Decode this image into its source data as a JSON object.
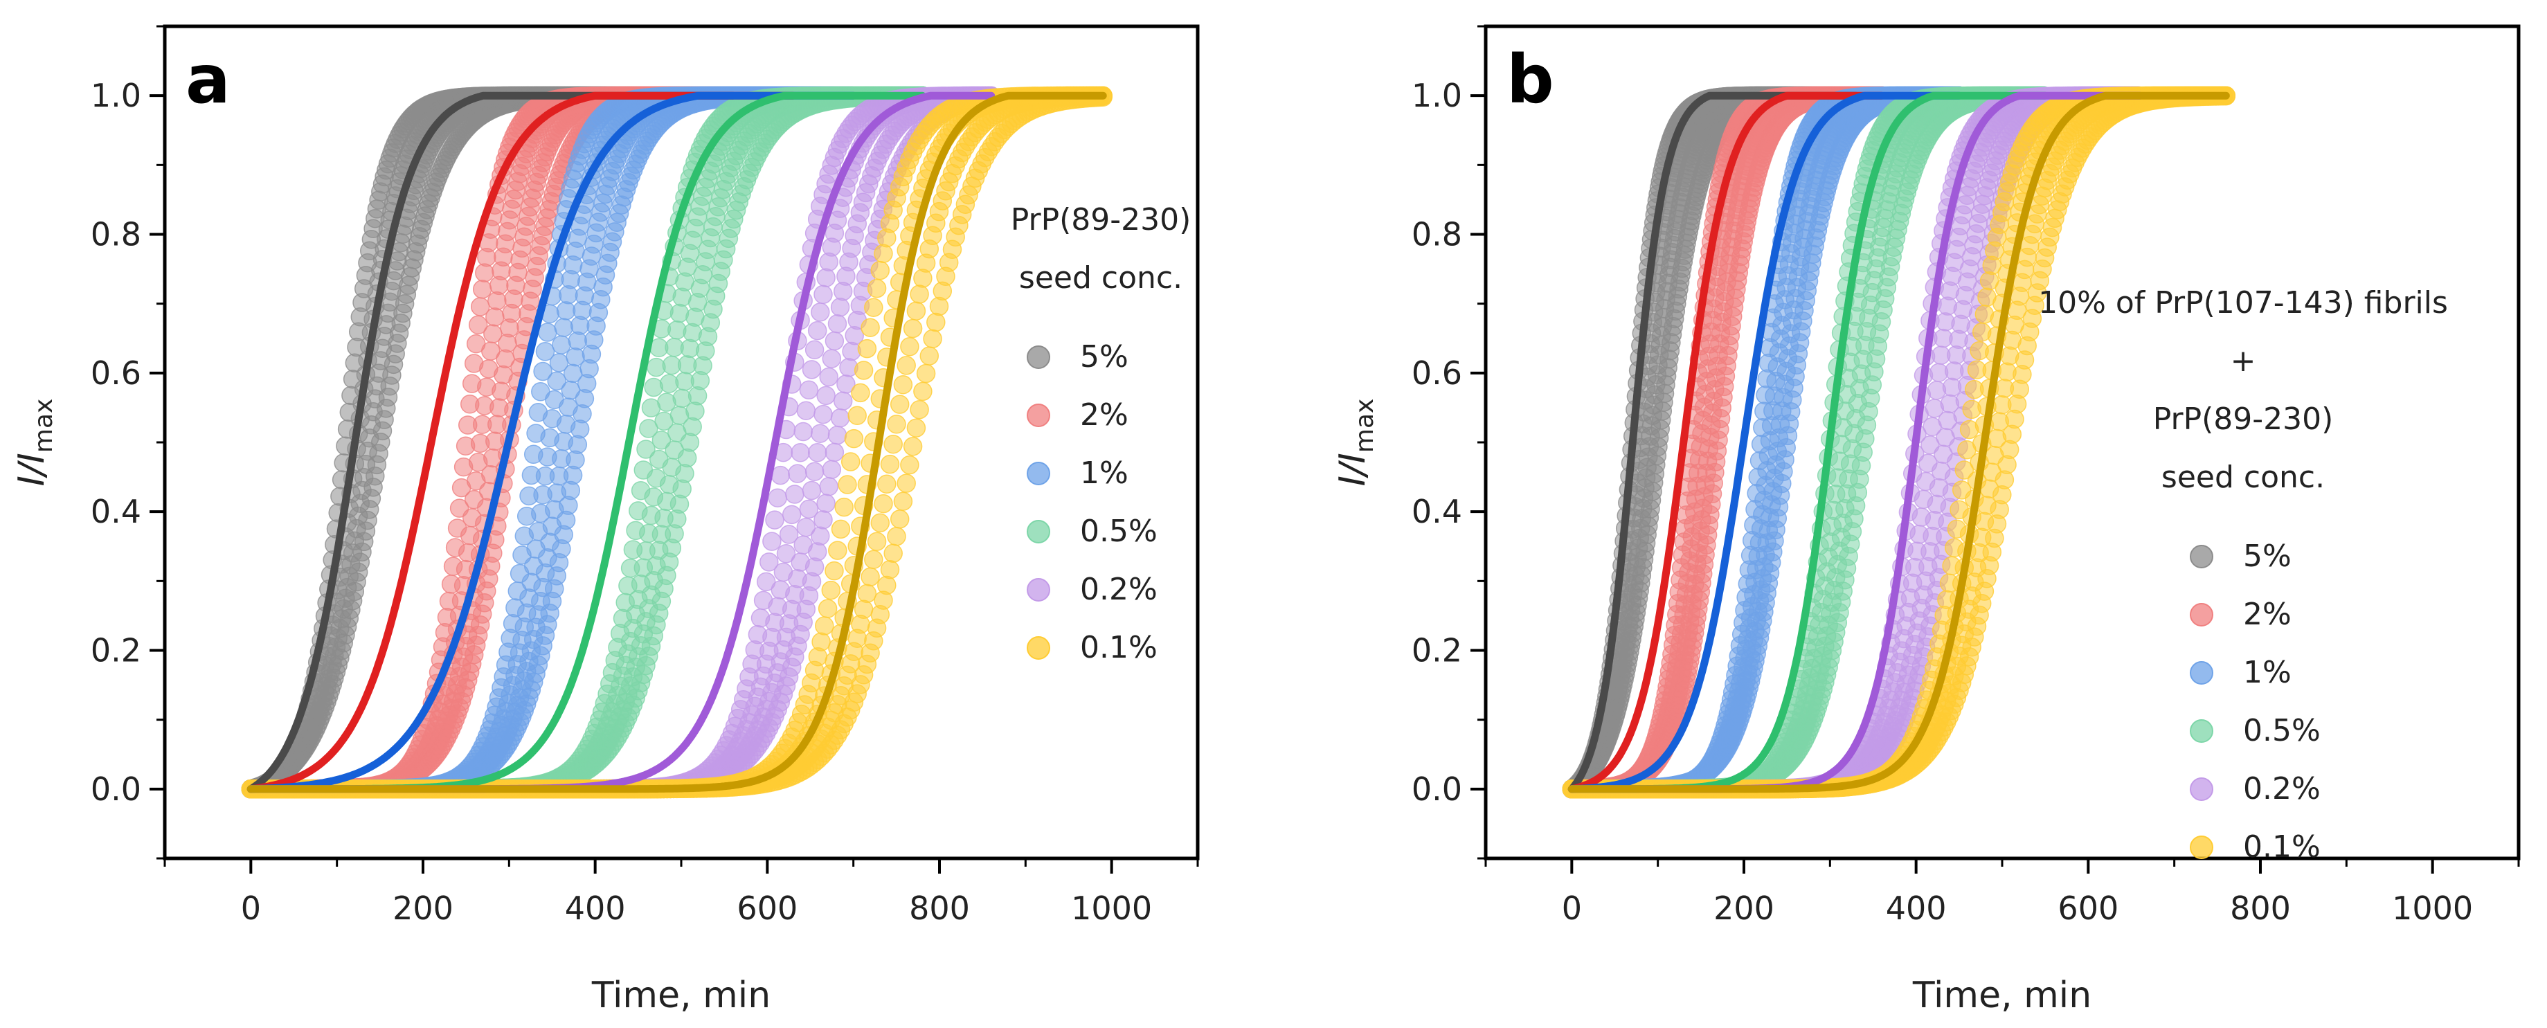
{
  "chart_data": [
    {
      "type": "scatter",
      "panel_label": "a",
      "xlabel": "Time, min",
      "ylabel": "I/I",
      "ylabel_sub": "max",
      "xlim": [
        -100,
        1100
      ],
      "ylim": [
        -0.1,
        1.1
      ],
      "xticks": [
        0,
        200,
        400,
        600,
        800,
        1000
      ],
      "yticks": [
        0.0,
        0.2,
        0.4,
        0.6,
        0.8,
        1.0
      ],
      "xtick_labels": [
        "0",
        "200",
        "400",
        "600",
        "800",
        "1000"
      ],
      "ytick_labels": [
        "0.0",
        "0.2",
        "0.4",
        "0.6",
        "0.8",
        "1.0"
      ],
      "legend_title": [
        "PrP(89-230)",
        "seed conc."
      ],
      "legend_position": "right",
      "series": [
        {
          "name": "5%",
          "color": "#8c8c8c",
          "fit_color": "#4a4a4a",
          "t_start": 0,
          "t_end": 560,
          "band_lag": [
            30,
            50
          ],
          "band_half": [
            110,
            150
          ],
          "band_k": [
            0.045,
            0.03
          ],
          "fit_lag": 0,
          "fit_half": 120,
          "fit_end": 270
        },
        {
          "name": "2%",
          "color": "#f08080",
          "fit_color": "#e02020",
          "t_start": 0,
          "t_end": 630,
          "band_lag": [
            150,
            175
          ],
          "band_half": [
            250,
            300
          ],
          "band_k": [
            0.05,
            0.035
          ],
          "fit_lag": 0,
          "fit_half": 210,
          "fit_end": 400
        },
        {
          "name": "1%",
          "color": "#6fa3e8",
          "fit_color": "#1560d8",
          "t_start": 0,
          "t_end": 700,
          "band_lag": [
            200,
            240
          ],
          "band_half": [
            330,
            380
          ],
          "band_k": [
            0.045,
            0.033
          ],
          "fit_lag": 0,
          "fit_half": 300,
          "fit_end": 520
        },
        {
          "name": "0.5%",
          "color": "#7dd6a8",
          "fit_color": "#2fbf6e",
          "t_start": 0,
          "t_end": 780,
          "band_lag": [
            300,
            330
          ],
          "band_half": [
            460,
            510
          ],
          "band_k": [
            0.04,
            0.03
          ],
          "fit_lag": 0,
          "fit_half": 440,
          "fit_end": 620
        },
        {
          "name": "0.2%",
          "color": "#c39be8",
          "fit_color": "#a05ad8",
          "t_start": 0,
          "t_end": 860,
          "band_lag": [
            500,
            520
          ],
          "band_half": [
            620,
            680
          ],
          "band_k": [
            0.04,
            0.03
          ],
          "fit_lag": 0,
          "fit_half": 610,
          "fit_end": 790
        },
        {
          "name": "0.1%",
          "color": "#ffcc33",
          "fit_color": "#c79a00",
          "t_start": 0,
          "t_end": 990,
          "band_lag": [
            560,
            600
          ],
          "band_half": [
            700,
            770
          ],
          "band_k": [
            0.035,
            0.028
          ],
          "fit_lag": 0,
          "fit_half": 730,
          "fit_end": 880
        }
      ]
    },
    {
      "type": "scatter",
      "panel_label": "b",
      "xlabel": "Time, min",
      "ylabel": "I/I",
      "ylabel_sub": "max",
      "xlim": [
        -100,
        1100
      ],
      "ylim": [
        -0.1,
        1.1
      ],
      "xticks": [
        0,
        200,
        400,
        600,
        800,
        1000
      ],
      "yticks": [
        0.0,
        0.2,
        0.4,
        0.6,
        0.8,
        1.0
      ],
      "xtick_labels": [
        "0",
        "200",
        "400",
        "600",
        "800",
        "1000"
      ],
      "ytick_labels": [
        "0.0",
        "0.2",
        "0.4",
        "0.6",
        "0.8",
        "1.0"
      ],
      "legend_title": [
        "10% of PrP(107-143) fibrils",
        "+",
        "PrP(89-230)",
        "seed conc."
      ],
      "legend_position": "right",
      "series": [
        {
          "name": "5%",
          "color": "#8c8c8c",
          "fit_color": "#4a4a4a",
          "t_start": 0,
          "t_end": 330,
          "band_lag": [
            20,
            30
          ],
          "band_half": [
            70,
            100
          ],
          "band_k": [
            0.06,
            0.04
          ],
          "fit_lag": 0,
          "fit_half": 70,
          "fit_end": 160
        },
        {
          "name": "2%",
          "color": "#f08080",
          "fit_color": "#e02020",
          "t_start": 0,
          "t_end": 360,
          "band_lag": [
            60,
            80
          ],
          "band_half": [
            140,
            170
          ],
          "band_k": [
            0.06,
            0.045
          ],
          "fit_lag": 0,
          "fit_half": 130,
          "fit_end": 250
        },
        {
          "name": "1%",
          "color": "#6fa3e8",
          "fit_color": "#1560d8",
          "t_start": 0,
          "t_end": 450,
          "band_lag": [
            120,
            140
          ],
          "band_half": [
            220,
            250
          ],
          "band_k": [
            0.055,
            0.04
          ],
          "fit_lag": 0,
          "fit_half": 200,
          "fit_end": 340
        },
        {
          "name": "0.5%",
          "color": "#7dd6a8",
          "fit_color": "#2fbf6e",
          "t_start": 0,
          "t_end": 550,
          "band_lag": [
            200,
            220
          ],
          "band_half": [
            300,
            340
          ],
          "band_k": [
            0.05,
            0.037
          ],
          "fit_lag": 0,
          "fit_half": 300,
          "fit_end": 420
        },
        {
          "name": "0.2%",
          "color": "#c39be8",
          "fit_color": "#a05ad8",
          "t_start": 0,
          "t_end": 660,
          "band_lag": [
            300,
            320
          ],
          "band_half": [
            400,
            450
          ],
          "band_k": [
            0.045,
            0.035
          ],
          "fit_lag": 0,
          "fit_half": 400,
          "fit_end": 520
        },
        {
          "name": "0.1%",
          "color": "#ffcc33",
          "fit_color": "#c79a00",
          "t_start": 0,
          "t_end": 760,
          "band_lag": [
            340,
            380
          ],
          "band_half": [
            460,
            510
          ],
          "band_k": [
            0.04,
            0.03
          ],
          "fit_lag": 0,
          "fit_half": 480,
          "fit_end": 620
        }
      ]
    }
  ]
}
